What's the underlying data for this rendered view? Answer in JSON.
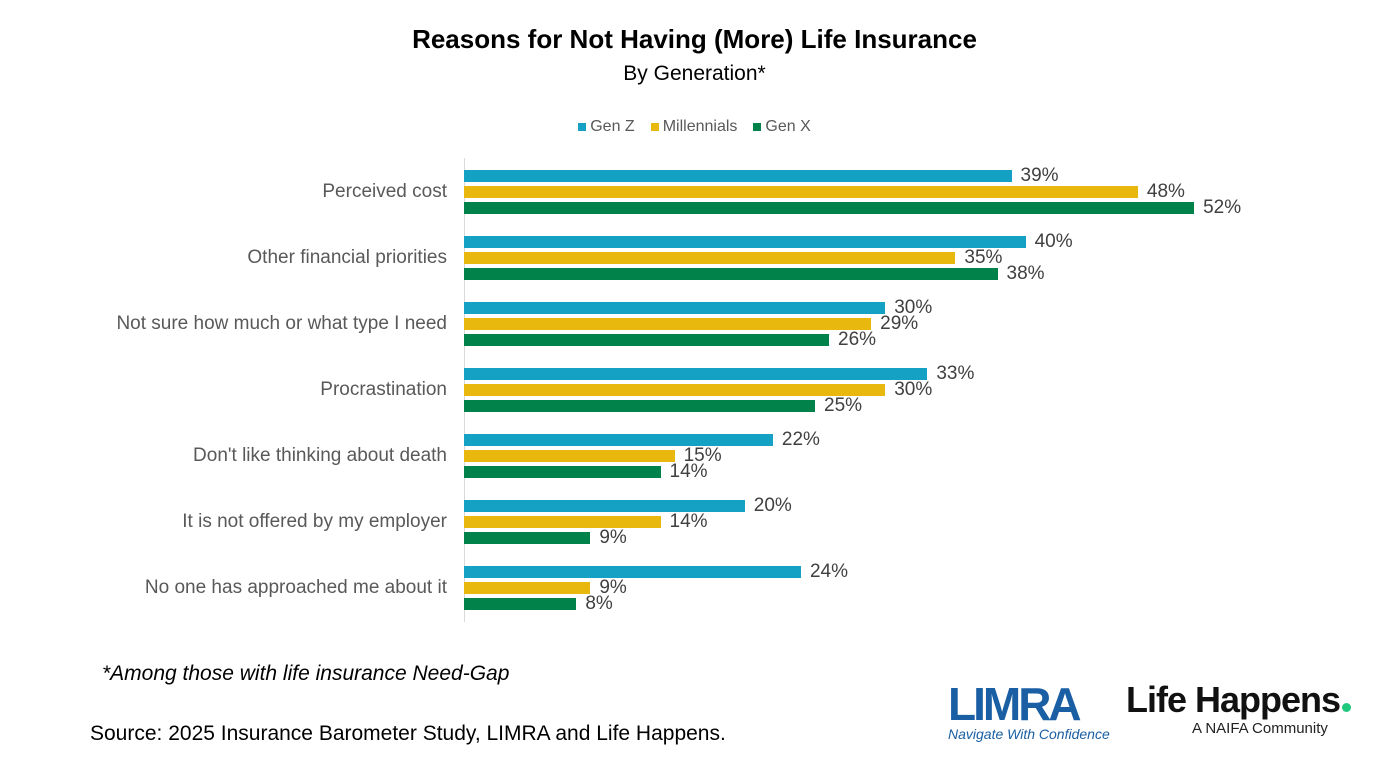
{
  "chart_data": {
    "type": "bar",
    "orientation": "horizontal",
    "title": "Reasons for Not Having (More) Life Insurance",
    "subtitle": "By Generation*",
    "categories": [
      "Perceived cost",
      "Other financial priorities",
      "Not sure how much or what type I need",
      "Procrastination",
      "Don't like thinking about death",
      "It is not offered by my employer",
      "No one has approached me about it"
    ],
    "series": [
      {
        "name": "Gen Z",
        "color": "#14a1c4",
        "values": [
          39,
          40,
          30,
          33,
          22,
          20,
          24
        ]
      },
      {
        "name": "Millennials",
        "color": "#e8b80f",
        "values": [
          48,
          35,
          29,
          30,
          15,
          14,
          9
        ]
      },
      {
        "name": "Gen X",
        "color": "#00824a",
        "values": [
          52,
          38,
          26,
          25,
          14,
          9,
          8
        ]
      }
    ],
    "value_suffix": "%",
    "xlim": [
      0,
      100
    ],
    "legend_position": "top",
    "grid": false
  },
  "footnote": "*Among those with life insurance Need-Gap",
  "source": "Source: 2025 Insurance Barometer Study, LIMRA and Life Happens.",
  "logos": {
    "limra": {
      "text": "LIMRA",
      "tagline": "Navigate With Confidence"
    },
    "life_happens": {
      "text": "Life Happens",
      "tagline": "A NAIFA Community"
    }
  }
}
